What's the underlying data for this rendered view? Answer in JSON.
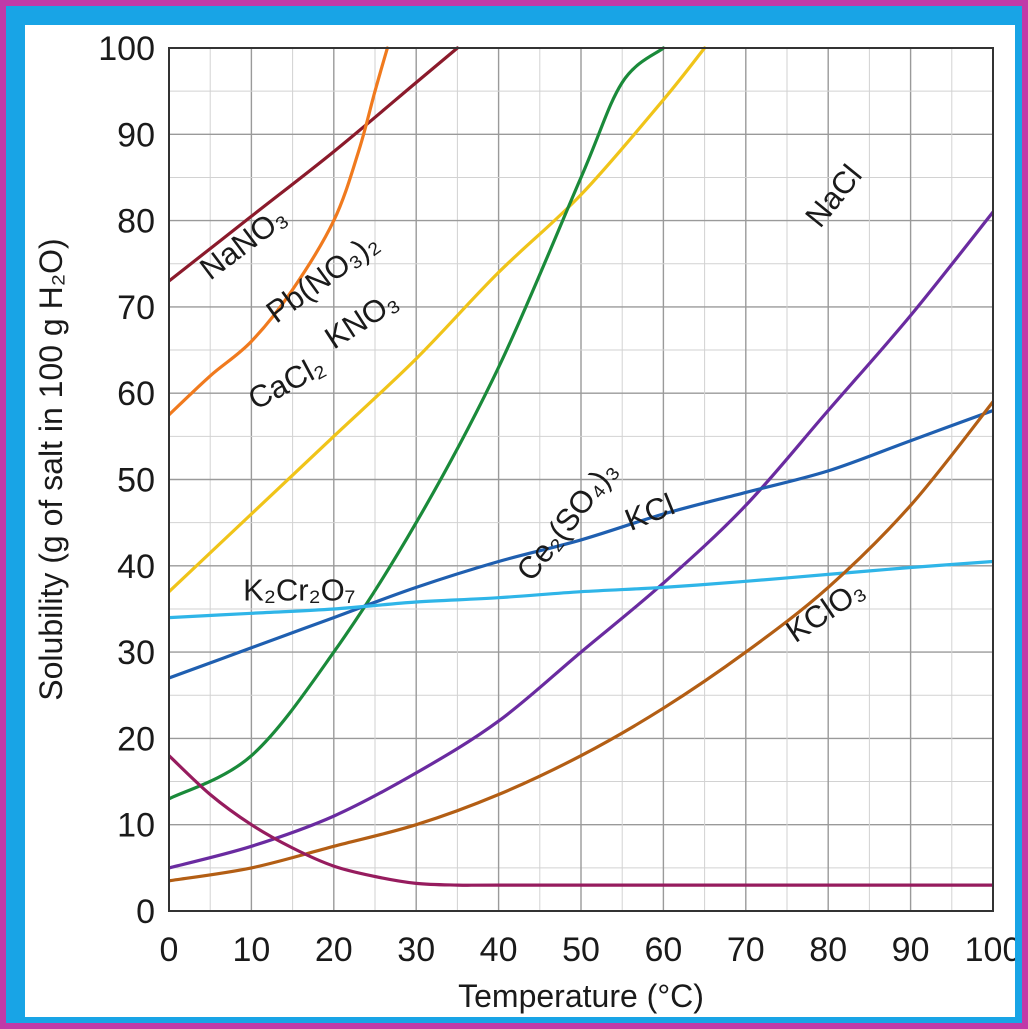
{
  "chart_data": {
    "type": "line",
    "xlabel": "Temperature (°C)",
    "ylabel": "Solubility (g of salt in 100 g H₂O)",
    "xlim": [
      0,
      100
    ],
    "ylim": [
      0,
      100
    ],
    "x_ticks": [
      "0",
      "10",
      "20",
      "30",
      "40",
      "50",
      "60",
      "70",
      "80",
      "90",
      "100"
    ],
    "y_ticks": [
      "0",
      "10",
      "20",
      "30",
      "40",
      "50",
      "60",
      "70",
      "80",
      "90",
      "100"
    ],
    "grid": true,
    "legend": "none (labels placed on curves)",
    "series": [
      {
        "name": "NaNO₃",
        "color": "#8b1a2b",
        "x": [
          0,
          10,
          20,
          30,
          35
        ],
        "y": [
          73,
          80.5,
          88,
          96,
          100
        ]
      },
      {
        "name": "CaCl₂",
        "color": "#f07a1e",
        "x": [
          0,
          5,
          10,
          15,
          20,
          23,
          25,
          26.5
        ],
        "y": [
          57.5,
          62,
          66,
          72,
          80,
          88,
          95,
          100
        ]
      },
      {
        "name": "Pb(NO₃)₂",
        "color": "#f0c419",
        "x": [
          0,
          10,
          20,
          30,
          40,
          50,
          60,
          65
        ],
        "y": [
          37,
          46,
          55,
          64,
          74,
          83,
          94,
          100
        ]
      },
      {
        "name": "KNO₃",
        "color": "#1a8a3a",
        "x": [
          0,
          10,
          20,
          30,
          40,
          50,
          55,
          60
        ],
        "y": [
          13,
          18,
          30,
          45,
          63,
          85,
          96,
          100
        ]
      },
      {
        "name": "K₂Cr₂O₇",
        "color": "#6a2ba0",
        "x": [
          0,
          10,
          20,
          30,
          40,
          50,
          60,
          70,
          80,
          90,
          100
        ],
        "y": [
          5,
          7.5,
          11,
          16,
          22,
          30,
          38,
          47,
          58,
          69,
          81
        ]
      },
      {
        "name": "KCl",
        "color": "#1f5fb0",
        "x": [
          0,
          10,
          20,
          30,
          40,
          50,
          60,
          70,
          80,
          90,
          100
        ],
        "y": [
          27,
          30.5,
          34,
          37.5,
          40.5,
          43,
          46,
          48.5,
          51,
          54.5,
          58
        ]
      },
      {
        "name": "NaCl",
        "color": "#2fb5e8",
        "x": [
          0,
          10,
          20,
          30,
          40,
          50,
          60,
          70,
          80,
          90,
          100
        ],
        "y": [
          34,
          34.5,
          35,
          35.8,
          36.3,
          37,
          37.5,
          38.2,
          39,
          39.8,
          40.5
        ]
      },
      {
        "name": "KClO₃",
        "color": "#b35e14",
        "x": [
          0,
          10,
          20,
          30,
          40,
          50,
          60,
          70,
          80,
          90,
          100
        ],
        "y": [
          3.5,
          5,
          7.5,
          10,
          13.5,
          18,
          23.5,
          30,
          37.5,
          47,
          59
        ]
      },
      {
        "name": "Ce₂(SO₄)₃",
        "color": "#961c5e",
        "x": [
          0,
          5,
          10,
          15,
          20,
          25,
          30,
          35,
          40,
          60,
          80,
          100
        ],
        "y": [
          18,
          13.5,
          10,
          7.3,
          5.2,
          4,
          3.2,
          3,
          3,
          3,
          3,
          3
        ]
      }
    ]
  }
}
